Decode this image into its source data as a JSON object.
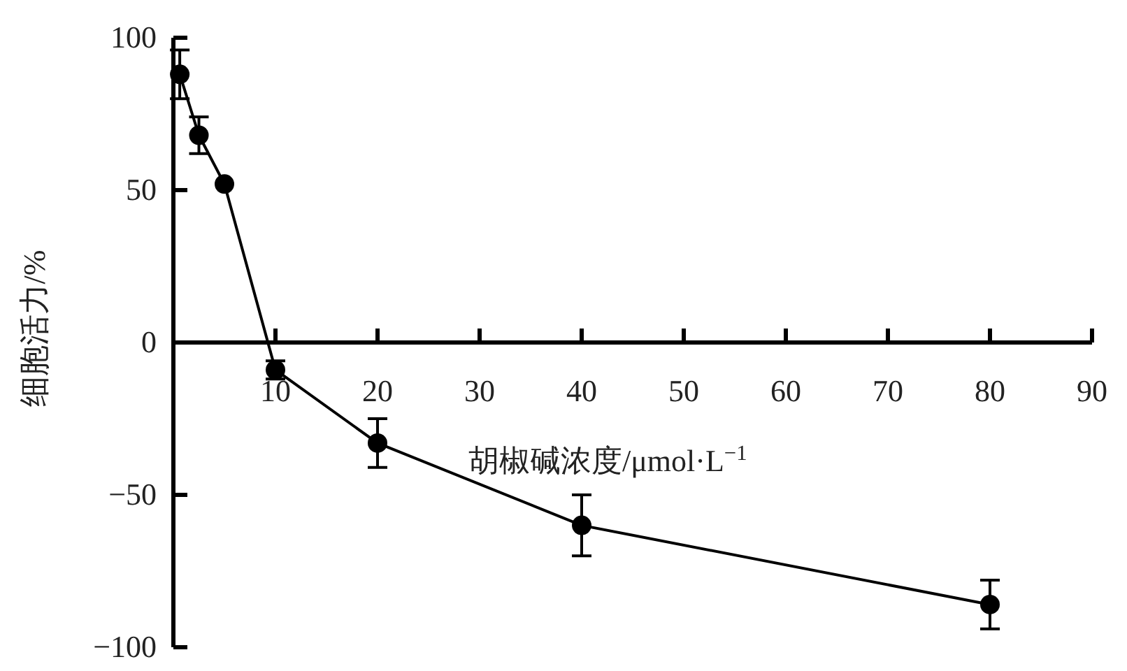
{
  "chart_data": {
    "type": "line",
    "xlabel": "胡椒碱浓度/μmol·L$^{−1}$",
    "ylabel": "细胞活力/%",
    "x": [
      0.625,
      2.5,
      5,
      10,
      20,
      40,
      80
    ],
    "series": [
      {
        "color": "#000000",
        "values": [
          88,
          68,
          52,
          -9,
          -33,
          -60,
          -86
        ],
        "errors": [
          8,
          6,
          null,
          3,
          8,
          10,
          8
        ]
      }
    ],
    "xlim": [
      0,
      90
    ],
    "xticks": [
      10,
      20,
      30,
      40,
      50,
      60,
      70,
      80,
      90
    ],
    "ylim": [
      -100,
      100
    ],
    "yticks": [
      {
        "value": -100,
        "label": "−100"
      },
      {
        "value": -50,
        "label": "−50"
      },
      0,
      50,
      100
    ],
    "marker": "circle",
    "line_style": "solid"
  }
}
